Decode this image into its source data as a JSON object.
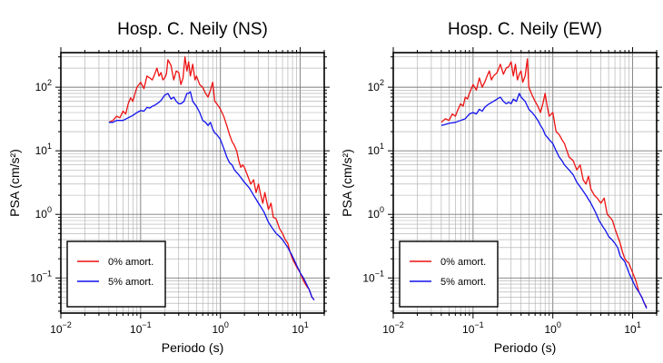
{
  "chart_data": [
    {
      "type": "line",
      "title": "Hosp. C. Neily (NS)",
      "xlabel": "Periodo (s)",
      "ylabel": "PSA (cm/s²)",
      "xscale": "log",
      "yscale": "log",
      "xlim": [
        0.01,
        20
      ],
      "ylim": [
        0.028,
        350
      ],
      "grid": true,
      "legend_position": "bottom-left",
      "x_ticks": [
        {
          "value": 0.01,
          "base": "10",
          "exp": "−2"
        },
        {
          "value": 0.1,
          "base": "10",
          "exp": "−1"
        },
        {
          "value": 1,
          "base": "10",
          "exp": "0"
        },
        {
          "value": 10,
          "base": "10",
          "exp": "1"
        }
      ],
      "y_ticks": [
        {
          "value": 0.1,
          "base": "10",
          "exp": "−1"
        },
        {
          "value": 1,
          "base": "10",
          "exp": "0"
        },
        {
          "value": 10,
          "base": "10",
          "exp": "1"
        },
        {
          "value": 100,
          "base": "10",
          "exp": "2"
        }
      ],
      "series": [
        {
          "name": "0% amort.",
          "color": "#ee1111",
          "x": [
            0.04,
            0.045,
            0.05,
            0.055,
            0.06,
            0.065,
            0.07,
            0.075,
            0.08,
            0.085,
            0.09,
            0.1,
            0.11,
            0.12,
            0.13,
            0.14,
            0.15,
            0.16,
            0.17,
            0.18,
            0.19,
            0.2,
            0.21,
            0.22,
            0.24,
            0.26,
            0.28,
            0.3,
            0.32,
            0.34,
            0.36,
            0.38,
            0.4,
            0.42,
            0.45,
            0.48,
            0.5,
            0.55,
            0.6,
            0.65,
            0.7,
            0.75,
            0.8,
            0.85,
            0.9,
            0.95,
            1.0,
            1.1,
            1.2,
            1.3,
            1.4,
            1.5,
            1.6,
            1.7,
            1.8,
            1.9,
            2.0,
            2.2,
            2.4,
            2.6,
            2.8,
            3.0,
            3.2,
            3.4,
            3.6,
            3.8,
            4.0,
            4.3,
            4.6,
            5.0,
            5.5,
            6.0,
            6.5,
            7.0,
            7.5,
            8.0,
            9.0,
            10.0,
            11.0,
            12.0,
            13.0,
            14.0,
            15.0
          ],
          "y": [
            28,
            30,
            35,
            33,
            42,
            38,
            55,
            68,
            60,
            80,
            100,
            120,
            95,
            150,
            140,
            130,
            160,
            200,
            150,
            170,
            130,
            140,
            160,
            270,
            220,
            130,
            180,
            170,
            110,
            140,
            300,
            180,
            250,
            150,
            230,
            130,
            150,
            110,
            100,
            80,
            70,
            90,
            120,
            60,
            55,
            50,
            45,
            35,
            25,
            18,
            14,
            12,
            10,
            7,
            5.5,
            6,
            5.5,
            4,
            3,
            3.5,
            2.2,
            3,
            2,
            1.5,
            2.2,
            1.6,
            1.2,
            1.5,
            0.9,
            0.85,
            0.6,
            0.5,
            0.4,
            0.35,
            0.25,
            0.2,
            0.15,
            0.12,
            0.09,
            0.075,
            0.065,
            0.05,
            0.045
          ]
        },
        {
          "name": "5% amort.",
          "color": "#1111ee",
          "x": [
            0.04,
            0.045,
            0.05,
            0.06,
            0.07,
            0.08,
            0.09,
            0.1,
            0.11,
            0.12,
            0.13,
            0.14,
            0.15,
            0.16,
            0.17,
            0.18,
            0.2,
            0.22,
            0.24,
            0.26,
            0.28,
            0.3,
            0.32,
            0.35,
            0.38,
            0.4,
            0.42,
            0.45,
            0.5,
            0.55,
            0.6,
            0.65,
            0.7,
            0.75,
            0.8,
            0.85,
            0.9,
            1.0,
            1.1,
            1.2,
            1.3,
            1.4,
            1.5,
            1.7,
            2.0,
            2.3,
            2.6,
            3.0,
            3.5,
            4.0,
            4.5,
            5.0,
            5.5,
            6.0,
            7.0,
            8.0,
            9.0,
            10.0,
            11.0,
            12.0,
            13.0,
            14.0,
            15.0
          ],
          "y": [
            28,
            28,
            30,
            30,
            33,
            36,
            40,
            43,
            42,
            48,
            47,
            50,
            52,
            55,
            58,
            62,
            75,
            80,
            65,
            70,
            60,
            55,
            55,
            60,
            80,
            80,
            85,
            60,
            50,
            40,
            30,
            28,
            25,
            28,
            22,
            19,
            18,
            15,
            11,
            8,
            6.5,
            6,
            5,
            4.2,
            3.2,
            2.6,
            2.0,
            1.5,
            1.1,
            0.75,
            0.6,
            0.5,
            0.45,
            0.4,
            0.3,
            0.22,
            0.16,
            0.12,
            0.1,
            0.08,
            0.065,
            0.05,
            0.045
          ]
        }
      ]
    },
    {
      "type": "line",
      "title": "Hosp. C. Neily (EW)",
      "xlabel": "Periodo (s)",
      "ylabel": "PSA (cm/s²)",
      "xscale": "log",
      "yscale": "log",
      "xlim": [
        0.01,
        20
      ],
      "ylim": [
        0.028,
        350
      ],
      "grid": true,
      "legend_position": "bottom-left",
      "x_ticks": [
        {
          "value": 0.01,
          "base": "10",
          "exp": "−2"
        },
        {
          "value": 0.1,
          "base": "10",
          "exp": "−1"
        },
        {
          "value": 1,
          "base": "10",
          "exp": "0"
        },
        {
          "value": 10,
          "base": "10",
          "exp": "1"
        }
      ],
      "y_ticks": [
        {
          "value": 0.1,
          "base": "10",
          "exp": "−1"
        },
        {
          "value": 1,
          "base": "10",
          "exp": "0"
        },
        {
          "value": 10,
          "base": "10",
          "exp": "1"
        },
        {
          "value": 100,
          "base": "10",
          "exp": "2"
        }
      ],
      "series": [
        {
          "name": "0% amort.",
          "color": "#ee1111",
          "x": [
            0.04,
            0.045,
            0.05,
            0.055,
            0.06,
            0.065,
            0.07,
            0.075,
            0.08,
            0.085,
            0.09,
            0.1,
            0.11,
            0.12,
            0.13,
            0.14,
            0.15,
            0.16,
            0.17,
            0.18,
            0.2,
            0.22,
            0.24,
            0.26,
            0.28,
            0.3,
            0.32,
            0.34,
            0.36,
            0.38,
            0.4,
            0.42,
            0.45,
            0.48,
            0.5,
            0.55,
            0.6,
            0.65,
            0.7,
            0.75,
            0.8,
            0.85,
            0.9,
            1.0,
            1.1,
            1.2,
            1.3,
            1.4,
            1.5,
            1.6,
            1.8,
            2.0,
            2.2,
            2.4,
            2.6,
            2.8,
            3.0,
            3.3,
            3.6,
            4.0,
            4.4,
            4.8,
            5.2,
            5.6,
            6.0,
            6.5,
            7.0,
            7.5,
            8.0,
            8.5,
            9.0,
            10.0,
            11.0,
            12.0,
            13.0,
            14.0,
            15.0
          ],
          "y": [
            28,
            32,
            30,
            38,
            35,
            45,
            55,
            50,
            70,
            65,
            80,
            110,
            90,
            140,
            100,
            120,
            150,
            180,
            130,
            150,
            170,
            230,
            160,
            200,
            210,
            250,
            150,
            230,
            130,
            160,
            180,
            120,
            150,
            280,
            100,
            75,
            60,
            50,
            40,
            55,
            80,
            50,
            35,
            40,
            20,
            18,
            15,
            13,
            10,
            8,
            7,
            5,
            6,
            3.5,
            3,
            4,
            2.5,
            2,
            1.8,
            1.5,
            1.8,
            1.0,
            0.9,
            0.8,
            0.6,
            0.45,
            0.35,
            0.25,
            0.2,
            0.18,
            0.17,
            0.12,
            0.09,
            0.06,
            0.05,
            0.04,
            0.035
          ]
        },
        {
          "name": "5% amort.",
          "color": "#1111ee",
          "x": [
            0.04,
            0.045,
            0.05,
            0.06,
            0.07,
            0.08,
            0.09,
            0.1,
            0.11,
            0.12,
            0.13,
            0.14,
            0.15,
            0.16,
            0.18,
            0.2,
            0.22,
            0.24,
            0.26,
            0.28,
            0.3,
            0.32,
            0.35,
            0.38,
            0.4,
            0.45,
            0.5,
            0.55,
            0.6,
            0.65,
            0.7,
            0.75,
            0.8,
            0.9,
            1.0,
            1.1,
            1.2,
            1.3,
            1.4,
            1.6,
            1.8,
            2.0,
            2.3,
            2.6,
            3.0,
            3.4,
            3.8,
            4.2,
            4.6,
            5.0,
            5.5,
            6.0,
            6.5,
            7.0,
            8.0,
            9.0,
            10.0,
            11.0,
            12.0,
            13.0,
            14.0,
            15.0
          ],
          "y": [
            25,
            26,
            27,
            28,
            30,
            32,
            38,
            40,
            38,
            45,
            42,
            48,
            52,
            55,
            60,
            65,
            70,
            60,
            55,
            58,
            55,
            65,
            60,
            80,
            70,
            60,
            45,
            40,
            35,
            30,
            25,
            22,
            18,
            15,
            13,
            10,
            8,
            7,
            6,
            5,
            4.2,
            3.2,
            2.5,
            2.0,
            1.5,
            1.1,
            0.8,
            0.65,
            0.55,
            0.45,
            0.4,
            0.35,
            0.3,
            0.22,
            0.18,
            0.12,
            0.09,
            0.07,
            0.06,
            0.05,
            0.04,
            0.033
          ]
        }
      ]
    }
  ]
}
